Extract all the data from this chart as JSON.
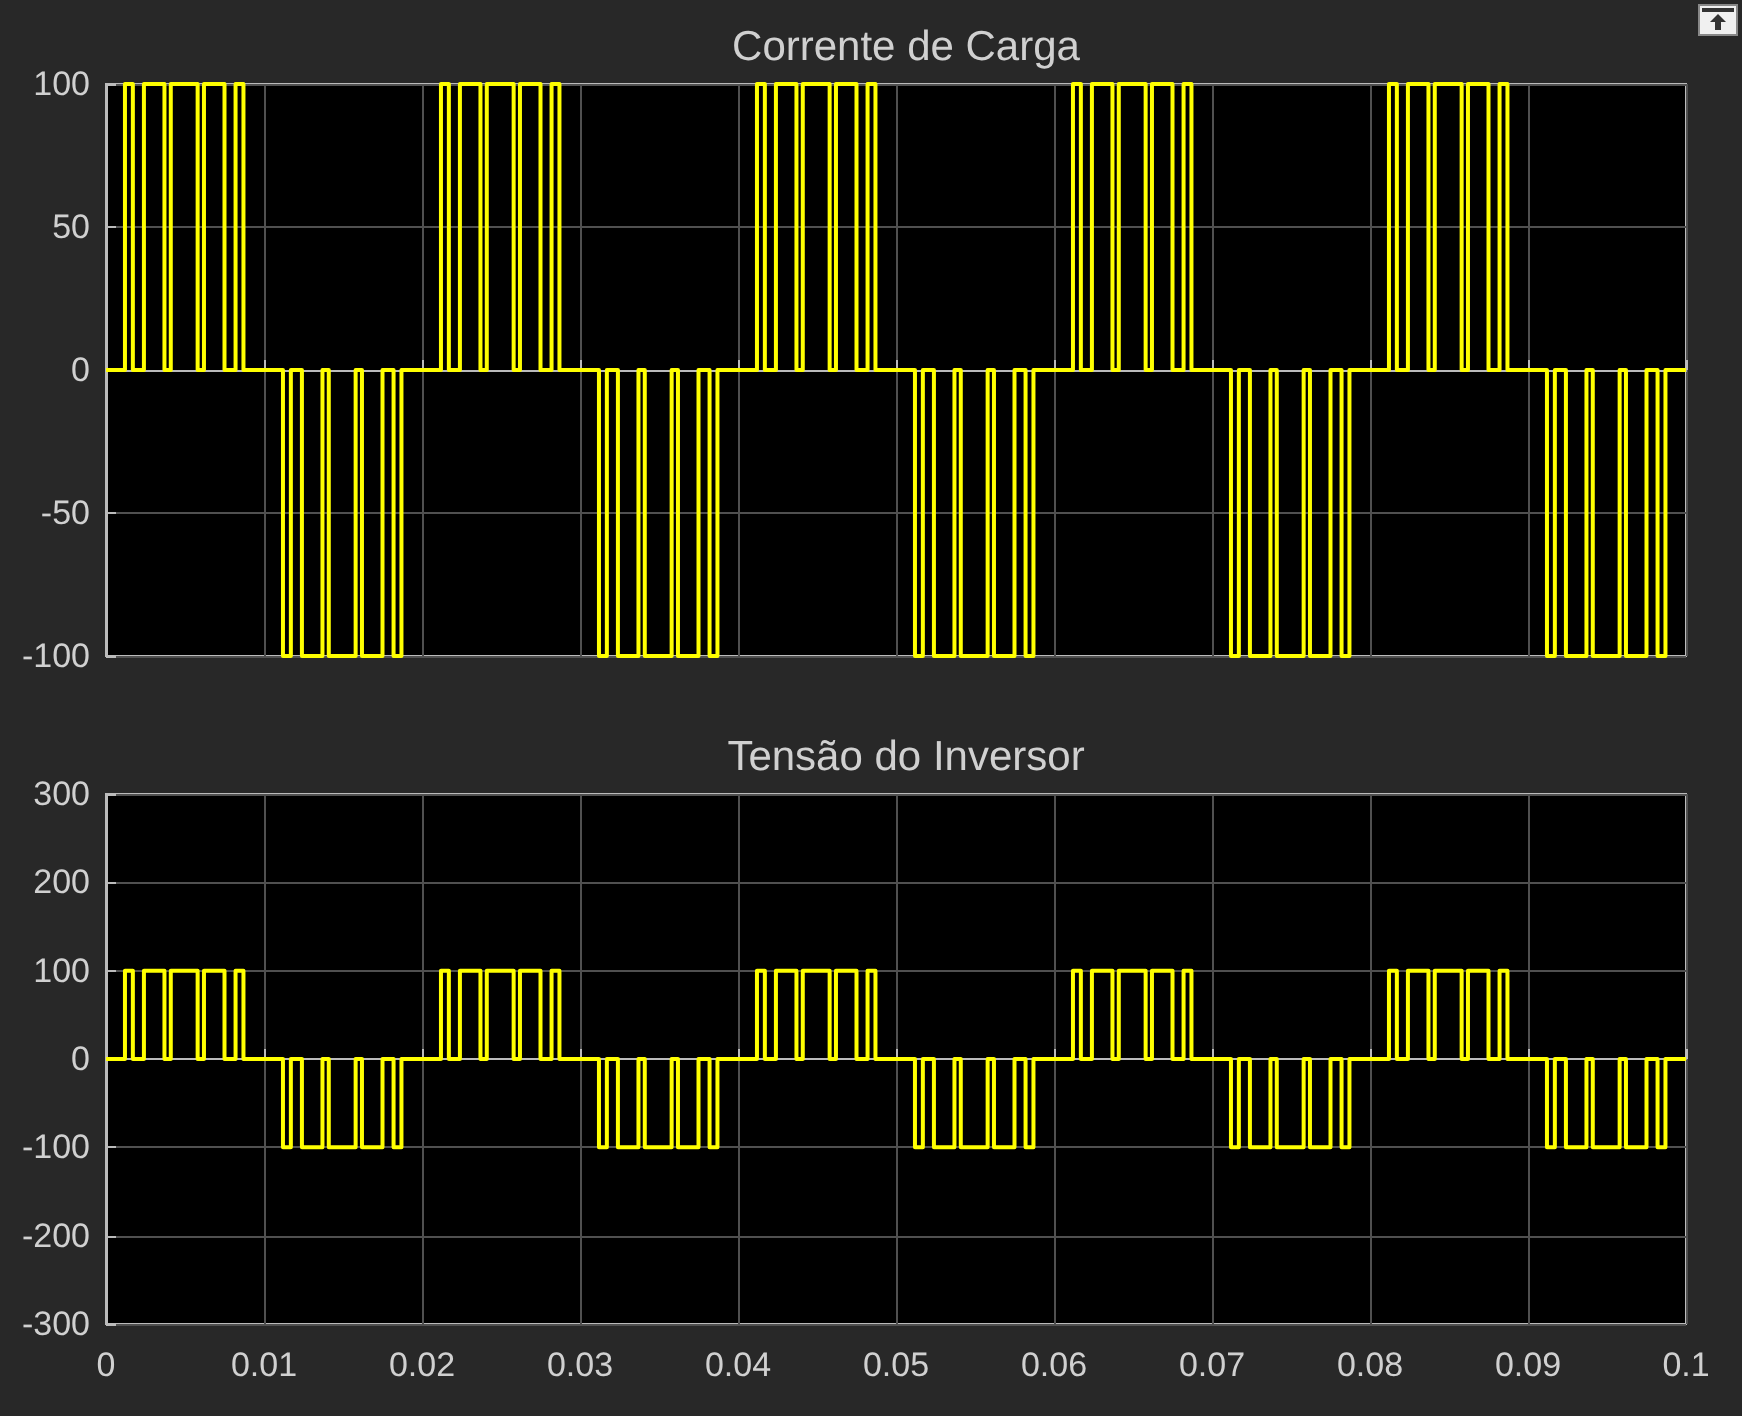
{
  "chart_data": [
    {
      "type": "step",
      "title": "Corrente de Carga",
      "xlim": [
        0,
        0.1
      ],
      "xticks": [
        0,
        0.01,
        0.02,
        0.03,
        0.04,
        0.05,
        0.06,
        0.07,
        0.08,
        0.09,
        0.1
      ],
      "ylim": [
        -100,
        100
      ],
      "yticks": [
        -100,
        -50,
        0,
        50,
        100
      ],
      "grid": true,
      "tick_labels": "y",
      "marker": "none",
      "line_style": "solid",
      "series": [
        {
          "color": "#ffff00",
          "x": [
            0,
            0.0012,
            0.0017,
            0.0024,
            0.0037,
            0.0041,
            0.0058,
            0.0062,
            0.0075,
            0.0082,
            0.0087,
            0.0112,
            0.0117,
            0.0124,
            0.0137,
            0.0141,
            0.0158,
            0.0162,
            0.0175,
            0.0182,
            0.0187,
            0.0212,
            0.0217,
            0.0224,
            0.0237,
            0.0241,
            0.0258,
            0.0262,
            0.0275,
            0.0282,
            0.0287,
            0.0312,
            0.0317,
            0.0324,
            0.0337,
            0.0341,
            0.0358,
            0.0362,
            0.0375,
            0.0382,
            0.0387,
            0.0412,
            0.0417,
            0.0424,
            0.0437,
            0.0441,
            0.0458,
            0.0462,
            0.0475,
            0.0482,
            0.0487,
            0.0512,
            0.0517,
            0.0524,
            0.0537,
            0.0541,
            0.0558,
            0.0562,
            0.0575,
            0.0582,
            0.0587,
            0.0612,
            0.0617,
            0.0624,
            0.0637,
            0.0641,
            0.0658,
            0.0662,
            0.0675,
            0.0682,
            0.0687,
            0.0712,
            0.0717,
            0.0724,
            0.0737,
            0.0741,
            0.0758,
            0.0762,
            0.0775,
            0.0782,
            0.0787,
            0.0812,
            0.0817,
            0.0824,
            0.0837,
            0.0841,
            0.0858,
            0.0862,
            0.0875,
            0.0882,
            0.0887,
            0.0912,
            0.0917,
            0.0924,
            0.0937,
            0.0941,
            0.0958,
            0.0962,
            0.0975,
            0.0982,
            0.0987,
            0.1
          ],
          "values": [
            0,
            100,
            0,
            100,
            0,
            100,
            0,
            100,
            0,
            100,
            0,
            -100,
            0,
            -100,
            0,
            -100,
            0,
            -100,
            0,
            -100,
            0,
            100,
            0,
            100,
            0,
            100,
            0,
            100,
            0,
            100,
            0,
            -100,
            0,
            -100,
            0,
            -100,
            0,
            -100,
            0,
            -100,
            0,
            100,
            0,
            100,
            0,
            100,
            0,
            100,
            0,
            100,
            0,
            -100,
            0,
            -100,
            0,
            -100,
            0,
            -100,
            0,
            -100,
            0,
            100,
            0,
            100,
            0,
            100,
            0,
            100,
            0,
            100,
            0,
            -100,
            0,
            -100,
            0,
            -100,
            0,
            -100,
            0,
            -100,
            0,
            100,
            0,
            100,
            0,
            100,
            0,
            100,
            0,
            100,
            0,
            -100,
            0,
            -100,
            0,
            -100,
            0,
            -100,
            0,
            -100,
            0,
            0
          ]
        }
      ]
    },
    {
      "type": "step",
      "title": "Tensão do Inversor",
      "xlim": [
        0,
        0.1
      ],
      "xticks": [
        0,
        0.01,
        0.02,
        0.03,
        0.04,
        0.05,
        0.06,
        0.07,
        0.08,
        0.09,
        0.1
      ],
      "ylim": [
        -300,
        300
      ],
      "yticks": [
        -300,
        -200,
        -100,
        0,
        100,
        200,
        300
      ],
      "grid": true,
      "marker": "none",
      "line_style": "solid",
      "series": [
        {
          "color": "#ffff00",
          "x": [
            0,
            0.0012,
            0.0017,
            0.0024,
            0.0037,
            0.0041,
            0.0058,
            0.0062,
            0.0075,
            0.0082,
            0.0087,
            0.0112,
            0.0117,
            0.0124,
            0.0137,
            0.0141,
            0.0158,
            0.0162,
            0.0175,
            0.0182,
            0.0187,
            0.0212,
            0.0217,
            0.0224,
            0.0237,
            0.0241,
            0.0258,
            0.0262,
            0.0275,
            0.0282,
            0.0287,
            0.0312,
            0.0317,
            0.0324,
            0.0337,
            0.0341,
            0.0358,
            0.0362,
            0.0375,
            0.0382,
            0.0387,
            0.0412,
            0.0417,
            0.0424,
            0.0437,
            0.0441,
            0.0458,
            0.0462,
            0.0475,
            0.0482,
            0.0487,
            0.0512,
            0.0517,
            0.0524,
            0.0537,
            0.0541,
            0.0558,
            0.0562,
            0.0575,
            0.0582,
            0.0587,
            0.0612,
            0.0617,
            0.0624,
            0.0637,
            0.0641,
            0.0658,
            0.0662,
            0.0675,
            0.0682,
            0.0687,
            0.0712,
            0.0717,
            0.0724,
            0.0737,
            0.0741,
            0.0758,
            0.0762,
            0.0775,
            0.0782,
            0.0787,
            0.0812,
            0.0817,
            0.0824,
            0.0837,
            0.0841,
            0.0858,
            0.0862,
            0.0875,
            0.0882,
            0.0887,
            0.0912,
            0.0917,
            0.0924,
            0.0937,
            0.0941,
            0.0958,
            0.0962,
            0.0975,
            0.0982,
            0.0987,
            0.1
          ],
          "values": [
            0,
            100,
            0,
            100,
            0,
            100,
            0,
            100,
            0,
            100,
            0,
            -100,
            0,
            -100,
            0,
            -100,
            0,
            -100,
            0,
            -100,
            0,
            100,
            0,
            100,
            0,
            100,
            0,
            100,
            0,
            100,
            0,
            -100,
            0,
            -100,
            0,
            -100,
            0,
            -100,
            0,
            -100,
            0,
            100,
            0,
            100,
            0,
            100,
            0,
            100,
            0,
            100,
            0,
            -100,
            0,
            -100,
            0,
            -100,
            0,
            -100,
            0,
            -100,
            0,
            100,
            0,
            100,
            0,
            100,
            0,
            100,
            0,
            100,
            0,
            -100,
            0,
            -100,
            0,
            -100,
            0,
            -100,
            0,
            -100,
            0,
            100,
            0,
            100,
            0,
            100,
            0,
            100,
            0,
            100,
            0,
            -100,
            0,
            -100,
            0,
            -100,
            0,
            -100,
            0,
            -100,
            0,
            0
          ]
        }
      ]
    }
  ]
}
